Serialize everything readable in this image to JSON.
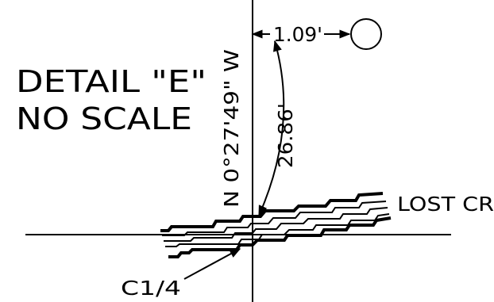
{
  "detail": {
    "title": "DETAIL \"E\"",
    "scale_note": "NO SCALE"
  },
  "labels": {
    "bearing": "N 0°27'49\" W",
    "arc_distance": "26.86'",
    "offset_distance": "1.09'",
    "creek": "LOST CR",
    "corner": "C1/4"
  },
  "colors": {
    "ink": "#000000",
    "paper": "#ffffff"
  }
}
